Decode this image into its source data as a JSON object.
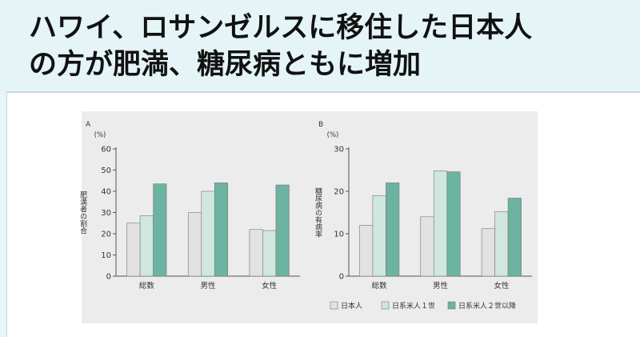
{
  "slide": {
    "title_line1": "ハワイ、ロサンゼルスに移住した日本人",
    "title_line2": "の方が肥満、糖尿病ともに増加"
  },
  "colors": {
    "japanese": "#e2e2e2",
    "nisei_issei": "#cfe7df",
    "nisei_later": "#6cb3a2",
    "axis": "#555555"
  },
  "legend": {
    "items": [
      {
        "label": "日本人",
        "series": 0
      },
      {
        "label": "日系米人１世",
        "series": 1
      },
      {
        "label": "日系米人２世以降",
        "series": 2
      }
    ]
  },
  "chart_data": [
    {
      "type": "bar",
      "panel_label": "A",
      "unit_label": "(%)",
      "ylabel": "肥満者の割合",
      "categories": [
        "総数",
        "男性",
        "女性"
      ],
      "ylim": [
        0,
        60
      ],
      "yticks": [
        0,
        10,
        20,
        30,
        40,
        50,
        60
      ],
      "series": [
        {
          "name": "日本人",
          "values": [
            25,
            30,
            22
          ]
        },
        {
          "name": "日系米人１世",
          "values": [
            28.5,
            40,
            21.5
          ]
        },
        {
          "name": "日系米人２世以降",
          "values": [
            43.5,
            44,
            43
          ]
        }
      ]
    },
    {
      "type": "bar",
      "panel_label": "B",
      "unit_label": "(%)",
      "ylabel": "糖尿病の有病率",
      "categories": [
        "総数",
        "男性",
        "女性"
      ],
      "ylim": [
        0,
        30
      ],
      "yticks": [
        0,
        10,
        20,
        30
      ],
      "series": [
        {
          "name": "日本人",
          "values": [
            12,
            14,
            11.2
          ]
        },
        {
          "name": "日系米人１世",
          "values": [
            19,
            24.8,
            15.2
          ]
        },
        {
          "name": "日系米人２世以降",
          "values": [
            22,
            24.6,
            18.4
          ]
        }
      ]
    }
  ]
}
